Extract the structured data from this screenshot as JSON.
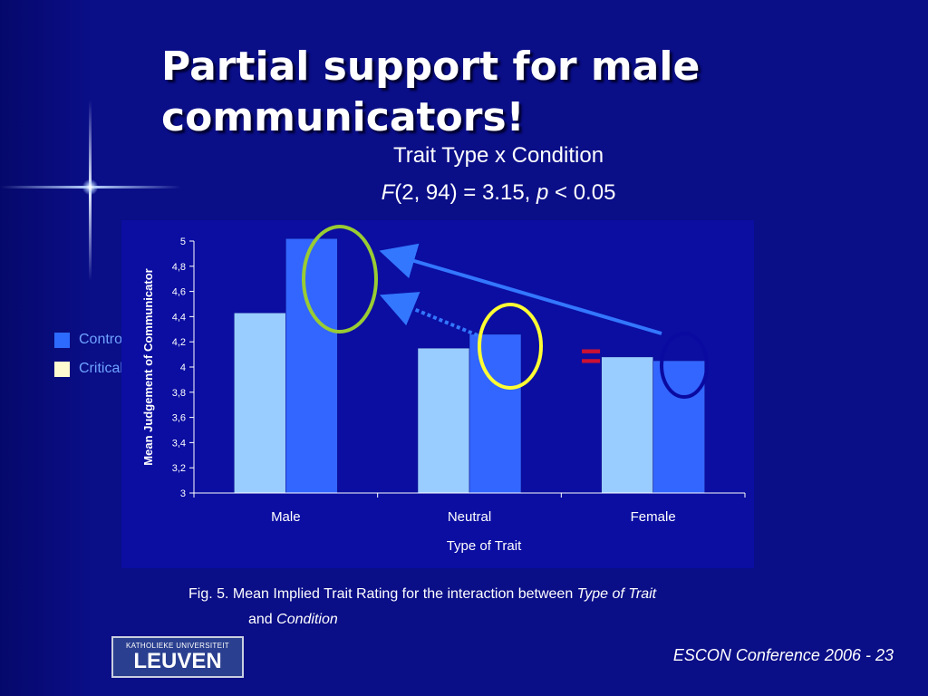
{
  "slide": {
    "title": "Partial support for male communicators!",
    "subtitle_line1": "Trait Type x Condition",
    "subtitle_line2_F": "F",
    "subtitle_line2_mid": "(2, 94) = 3.15, ",
    "subtitle_line2_p": "p",
    "subtitle_line2_end": " < 0.05",
    "caption_prefix": "Fig. 5.  Mean Implied Trait Rating for the interaction between ",
    "caption_italic1": "Type of Trait",
    "caption_and": "and ",
    "caption_italic2": "Condition",
    "footer": "ESCON Conference 2006 - 23",
    "logo_top": "KATHOLIEKE UNIVERSITEIT",
    "logo_main": "LEUVEN",
    "equals_sign": "="
  },
  "legend": {
    "items": [
      {
        "label": "Control",
        "color": "#2d6bff"
      },
      {
        "label": "Critical",
        "color": "#fffbd0"
      }
    ]
  },
  "chart_data": {
    "type": "bar",
    "categories": [
      "Male",
      "Neutral",
      "Female"
    ],
    "series": [
      {
        "name": "Critical",
        "color": "#99ccff",
        "values": [
          4.43,
          4.15,
          4.08
        ]
      },
      {
        "name": "Control",
        "color": "#3366ff",
        "values": [
          5.02,
          4.26,
          4.05
        ]
      }
    ],
    "xlabel": "Type of Trait",
    "ylabel": "Mean Judgement of Communicator",
    "ylim": [
      3,
      5
    ],
    "yticks": [
      "3",
      "3,2",
      "3,4",
      "3,6",
      "3,8",
      "4",
      "4,2",
      "4,4",
      "4,6",
      "4,8",
      "5"
    ],
    "ytick_values": [
      3,
      3.2,
      3.4,
      3.6,
      3.8,
      4,
      4.2,
      4.4,
      4.6,
      4.8,
      5
    ],
    "grid": false,
    "annotations": {
      "green_circle_color": "#99cc33",
      "yellow_circle_color": "#ffff33",
      "navy_circle_color": "#0a0aa0",
      "arrow_color": "#3377ff",
      "equals_color": "#cc1133"
    }
  }
}
